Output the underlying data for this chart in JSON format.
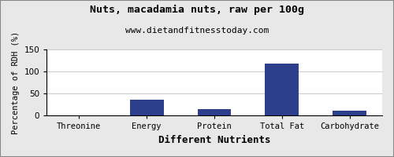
{
  "title": "Nuts, macadamia nuts, raw per 100g",
  "subtitle": "www.dietandfitnesstoday.com",
  "xlabel": "Different Nutrients",
  "ylabel": "Percentage of RDH (%)",
  "categories": [
    "Threonine",
    "Energy",
    "Protein",
    "Total Fat",
    "Carbohydrate"
  ],
  "values": [
    0.5,
    37,
    15,
    118,
    12
  ],
  "bar_color": "#2b3f8c",
  "ylim": [
    0,
    150
  ],
  "yticks": [
    0,
    50,
    100,
    150
  ],
  "background_color": "#e8e8e8",
  "plot_bg_color": "#ffffff",
  "title_fontsize": 9.5,
  "subtitle_fontsize": 8,
  "xlabel_fontsize": 9,
  "ylabel_fontsize": 7.5,
  "tick_fontsize": 7.5
}
